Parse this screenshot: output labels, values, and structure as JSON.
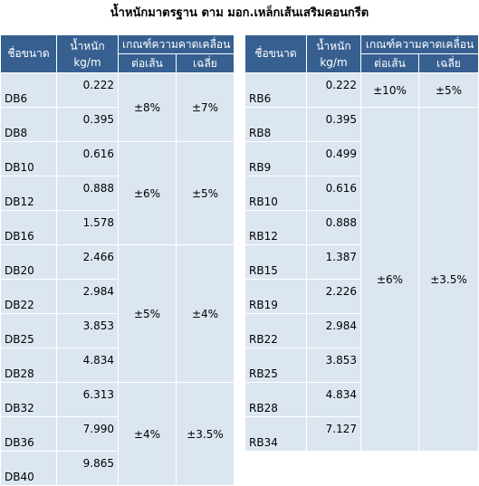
{
  "title": "น้ำหนักมาตรฐาน ตาม มอก.เหล็กเส้นเสริมคอนกรีต",
  "tables": [
    {
      "header": {
        "size": "ชื่อขนาด",
        "weight": "น้ำหนัก",
        "unit": "kg/m",
        "tolerance": "เกณฑ์ความคาดเคลื่อน",
        "per_bar": "ต่อเส้น",
        "average": "เฉลี่ย"
      },
      "groups": [
        {
          "per_bar": "±8%",
          "average": "±7%",
          "rows": [
            {
              "size": "DB6",
              "weight": "0.222"
            },
            {
              "size": "DB8",
              "weight": "0.395"
            }
          ]
        },
        {
          "per_bar": "±6%",
          "average": "±5%",
          "rows": [
            {
              "size": "DB10",
              "weight": "0.616"
            },
            {
              "size": "DB12",
              "weight": "0.888"
            },
            {
              "size": "DB16",
              "weight": "1.578"
            }
          ]
        },
        {
          "per_bar": "±5%",
          "average": "±4%",
          "rows": [
            {
              "size": "DB20",
              "weight": "2.466"
            },
            {
              "size": "DB22",
              "weight": "2.984"
            },
            {
              "size": "DB25",
              "weight": "3.853"
            },
            {
              "size": "DB28",
              "weight": "4.834"
            }
          ]
        },
        {
          "per_bar": "±4%",
          "average": "±3.5%",
          "rows": [
            {
              "size": "DB32",
              "weight": "6.313"
            },
            {
              "size": "DB36",
              "weight": "7.990"
            },
            {
              "size": "DB40",
              "weight": "9.865"
            }
          ]
        }
      ]
    },
    {
      "header": {
        "size": "ชื่อขนาด",
        "weight": "น้ำหนัก",
        "unit": "kg/m",
        "tolerance": "เกณฑ์ความคาดเคลื่อน",
        "per_bar": "ต่อเส้น",
        "average": "เฉลี่ย"
      },
      "groups": [
        {
          "per_bar": "±10%",
          "average": "±5%",
          "rows": [
            {
              "size": "RB6",
              "weight": "0.222"
            }
          ]
        },
        {
          "per_bar": "±6%",
          "average": "±3.5%",
          "rows": [
            {
              "size": "RB8",
              "weight": "0.395"
            },
            {
              "size": "RB9",
              "weight": "0.499"
            },
            {
              "size": "RB10",
              "weight": "0.616"
            },
            {
              "size": "RB12",
              "weight": "0.888"
            },
            {
              "size": "RB15",
              "weight": "1.387"
            },
            {
              "size": "RB19",
              "weight": "2.226"
            },
            {
              "size": "RB22",
              "weight": "2.984"
            },
            {
              "size": "RB25",
              "weight": "3.853"
            },
            {
              "size": "RB28",
              "weight": "4.834"
            },
            {
              "size": "RB34",
              "weight": "7.127"
            }
          ]
        }
      ]
    }
  ]
}
